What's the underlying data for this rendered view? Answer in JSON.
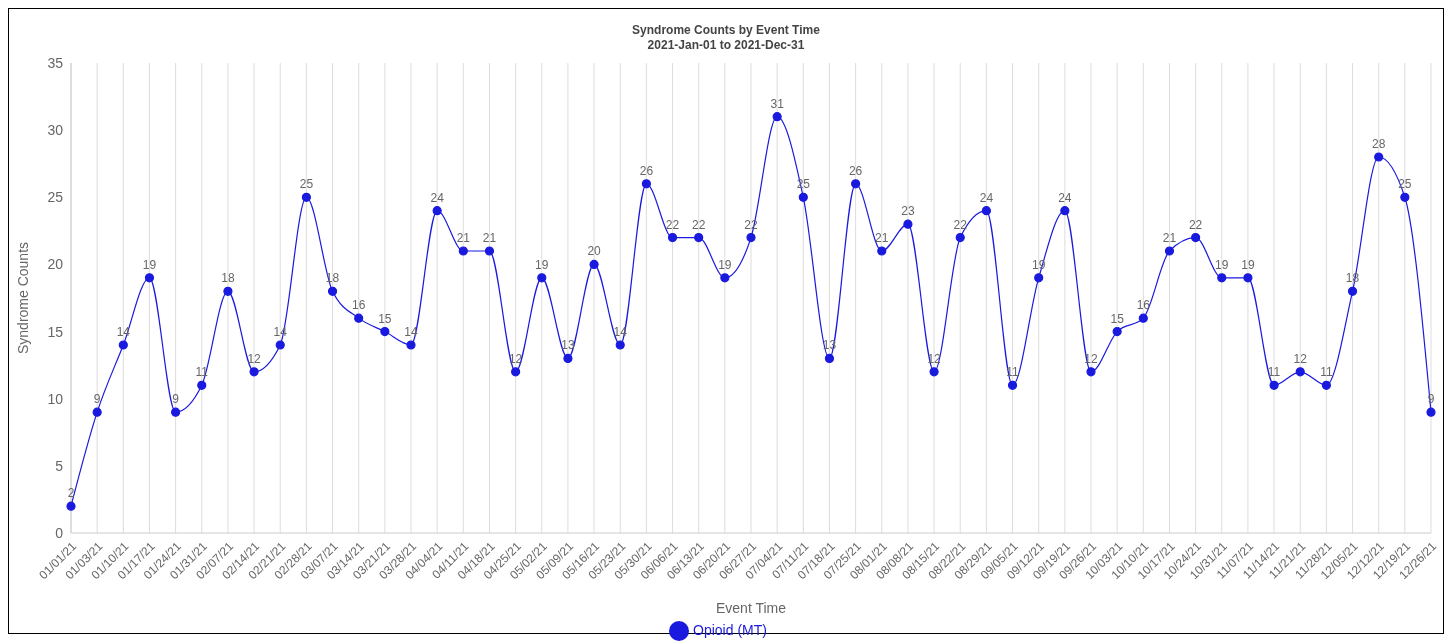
{
  "chart_data": {
    "type": "line",
    "title": "Syndrome Counts by Event Time",
    "subtitle": "2021-Jan-01 to 2021-Dec-31",
    "xlabel": "Event Time",
    "ylabel": "Syndrome Counts",
    "categories": [
      "01/01/21",
      "01/03/21",
      "01/10/21",
      "01/17/21",
      "01/24/21",
      "01/31/21",
      "02/07/21",
      "02/14/21",
      "02/21/21",
      "02/28/21",
      "03/07/21",
      "03/14/21",
      "03/21/21",
      "03/28/21",
      "04/04/21",
      "04/11/21",
      "04/18/21",
      "04/25/21",
      "05/02/21",
      "05/09/21",
      "05/16/21",
      "05/23/21",
      "05/30/21",
      "06/06/21",
      "06/13/21",
      "06/20/21",
      "06/27/21",
      "07/04/21",
      "07/11/21",
      "07/18/21",
      "07/25/21",
      "08/01/21",
      "08/08/21",
      "08/15/21",
      "08/22/21",
      "08/29/21",
      "09/05/21",
      "09/12/21",
      "09/19/21",
      "09/26/21",
      "10/03/21",
      "10/10/21",
      "10/17/21",
      "10/24/21",
      "10/31/21",
      "11/07/21",
      "11/14/21",
      "11/21/21",
      "11/28/21",
      "12/05/21",
      "12/12/21",
      "12/19/21",
      "12/26/21"
    ],
    "series": [
      {
        "name": "Opioid (MT)",
        "color": "#1a1adf",
        "values": [
          2,
          9,
          14,
          19,
          9,
          11,
          18,
          12,
          14,
          25,
          18,
          16,
          15,
          14,
          24,
          21,
          21,
          12,
          19,
          13,
          20,
          14,
          26,
          22,
          22,
          19,
          22,
          31,
          25,
          13,
          26,
          21,
          23,
          12,
          22,
          24,
          11,
          19,
          24,
          12,
          15,
          16,
          21,
          22,
          19,
          19,
          11,
          12,
          11,
          18,
          28,
          25,
          9
        ]
      }
    ],
    "ylim": [
      0,
      35
    ],
    "yticks": [
      0,
      5,
      10,
      15,
      20,
      25,
      30,
      35
    ],
    "grid": "x",
    "legend": "bottom",
    "marker": "circle",
    "line_style": "solid",
    "data_labels": true
  }
}
